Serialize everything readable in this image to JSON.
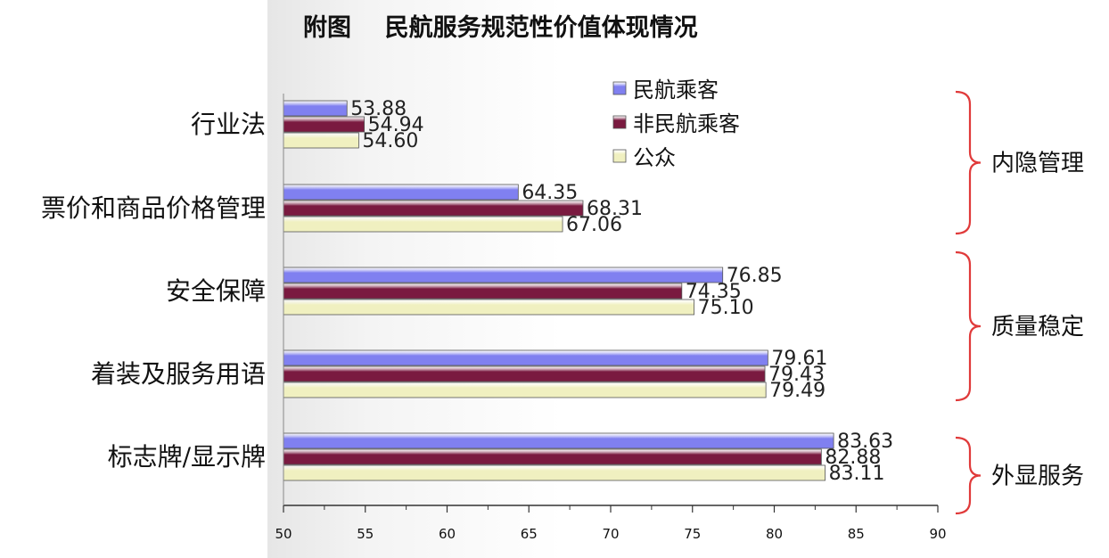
{
  "chart_data": {
    "type": "bar",
    "orientation": "horizontal",
    "title": "附图    民航服务规范性价值体现情况",
    "categories": [
      "行业法",
      "票价和商品价格管理",
      "安全保障",
      "着装及服务用语",
      "标志牌/显示牌"
    ],
    "series": [
      {
        "name": "民航乘客",
        "color": "#8080f0",
        "values": [
          53.88,
          64.35,
          76.85,
          79.61,
          83.63
        ],
        "labels": [
          "53.88",
          "64.35",
          "76.85",
          "79.61",
          "83.63"
        ]
      },
      {
        "name": "非民航乘客",
        "color": "#7a1a40",
        "values": [
          54.94,
          68.31,
          74.35,
          79.43,
          82.88
        ],
        "labels": [
          "54.94",
          "68.31",
          "74.35",
          "79.43",
          "82.88"
        ]
      },
      {
        "name": "公众",
        "color": "#f0f0c0",
        "values": [
          54.6,
          67.06,
          75.1,
          79.49,
          83.11
        ],
        "labels": [
          "54.60",
          "67.06",
          "75.10",
          "79.49",
          "83.11"
        ]
      }
    ],
    "xlim": [
      50,
      90
    ],
    "xticks": [
      "50",
      "55",
      "60",
      "65",
      "70",
      "75",
      "80",
      "85",
      "90"
    ],
    "legend_position": "top-center",
    "groups": [
      {
        "label": "内隐管理",
        "categories": [
          0,
          1
        ]
      },
      {
        "label": "质量稳定",
        "categories": [
          2,
          3
        ]
      },
      {
        "label": "外显服务",
        "categories": [
          4
        ]
      }
    ],
    "bracket_color": "#e03a3a"
  }
}
